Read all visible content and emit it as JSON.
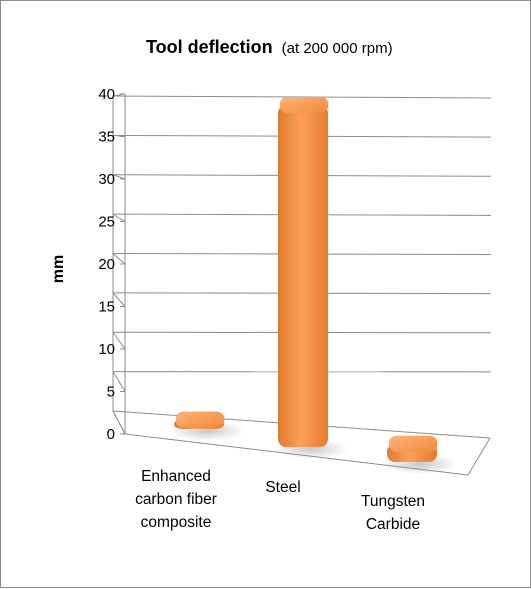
{
  "chart_data": {
    "type": "bar",
    "title": "Tool deflection",
    "subtitle": "(at 200 000 rpm)",
    "ylabel": "mm",
    "xlabel": "",
    "ylim": [
      0,
      40
    ],
    "yticks": [
      "0",
      "5",
      "10",
      "15",
      "20",
      "25",
      "30",
      "35",
      "40"
    ],
    "categories": [
      [
        "Enhanced",
        "carbon fiber",
        "composite"
      ],
      [
        "Steel"
      ],
      [
        "Tungsten",
        "Carbide"
      ]
    ],
    "values": [
      2,
      40,
      3
    ],
    "bar_color": "#f79646",
    "grid": true,
    "legend": "none",
    "style": "3d"
  }
}
